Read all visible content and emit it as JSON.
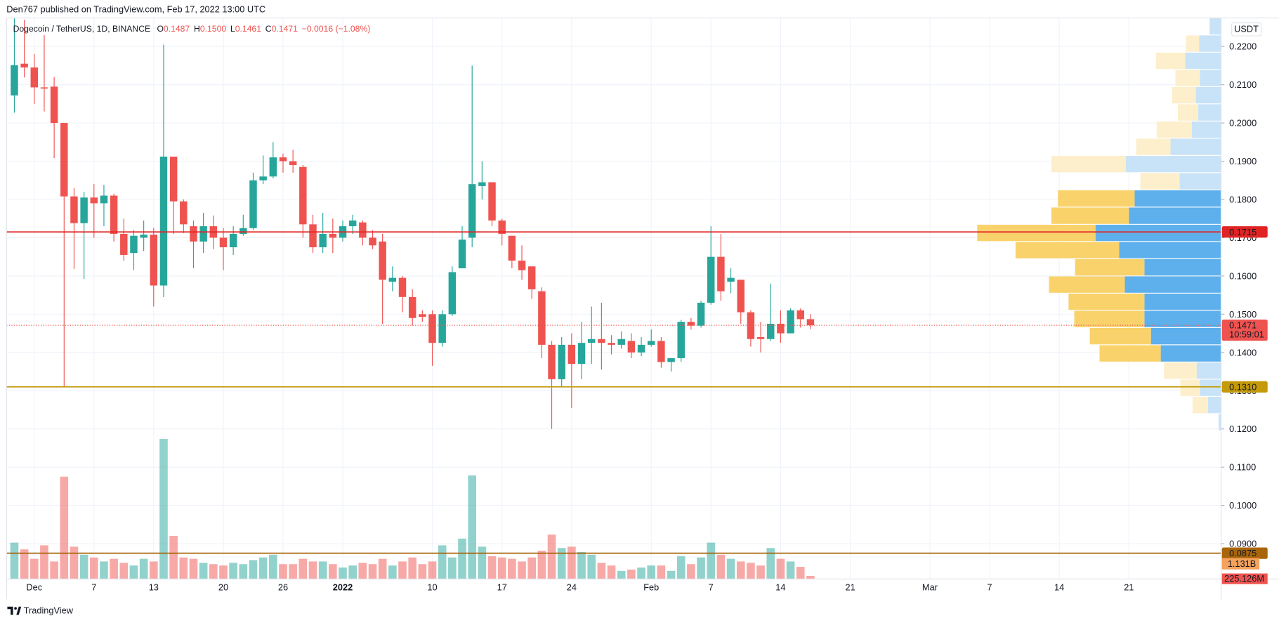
{
  "header": {
    "publisher": "Den767 published on TradingView.com, Feb 17, 2022 13:00 UTC"
  },
  "footer": {
    "brand": "TradingView"
  },
  "chart_data": {
    "type": "candlestick",
    "symbol": "Dogecoin / TetherUS, 1D, BINANCE",
    "ohlc_legend": [
      {
        "label": "O",
        "value": "0.1487"
      },
      {
        "label": "H",
        "value": "0.1500"
      },
      {
        "label": "L",
        "value": "0.1461"
      },
      {
        "label": "C",
        "value": "0.1471"
      }
    ],
    "change": "−0.0016 (−1.08%)",
    "currency": "USDT",
    "up_color": "#26a69a",
    "down_color": "#ef5350",
    "grid": true,
    "categories": [
      null,
      null,
      "Dec",
      null,
      null,
      null,
      null,
      null,
      "7",
      null,
      null,
      null,
      null,
      null,
      "13",
      null,
      null,
      null,
      null,
      null,
      null,
      "20",
      null,
      null,
      null,
      null,
      null,
      "26",
      null,
      null,
      null,
      null,
      null,
      "2022",
      null,
      null,
      null,
      null,
      null,
      null,
      null,
      null,
      "10",
      null,
      null,
      null,
      null,
      null,
      null,
      "17",
      null,
      null,
      null,
      null,
      null,
      null,
      "24",
      null,
      null,
      null,
      null,
      null,
      null,
      null,
      "Feb",
      null,
      null,
      null,
      null,
      null,
      "7",
      null,
      null,
      null,
      null,
      null,
      null,
      "14",
      null,
      null,
      null,
      null,
      null,
      null,
      "21",
      null,
      null,
      null,
      null,
      null,
      null,
      null,
      "Mar",
      null,
      null,
      null,
      null,
      null,
      "7",
      null,
      null,
      null,
      null,
      null,
      null,
      "14",
      null,
      null,
      null,
      null,
      null,
      null,
      "21",
      null,
      null,
      null,
      null,
      null,
      null,
      null,
      null,
      null
    ],
    "open": [
      0.2072,
      0.2155,
      0.2145,
      0.2093,
      0.2095,
      0.2,
      0.1808,
      0.1738,
      0.1805,
      0.179,
      0.181,
      0.171,
      0.166,
      0.17,
      0.1708,
      0.1575,
      0.1912,
      0.1795,
      0.173,
      0.169,
      0.173,
      0.17,
      0.1675,
      0.171,
      0.1725,
      0.185,
      0.186,
      0.191,
      0.19,
      0.1885,
      0.1735,
      0.1675,
      0.171,
      0.17,
      0.173,
      0.174,
      0.17,
      0.169,
      0.1585,
      0.1595,
      0.1545,
      0.15,
      0.15,
      0.1425,
      0.15,
      0.162,
      0.17,
      0.1835,
      0.1845,
      0.1745,
      0.1705,
      0.164,
      0.1625,
      0.156,
      0.142,
      0.133,
      0.142,
      0.137,
      0.1425,
      0.1435,
      0.1425,
      0.142,
      0.143,
      0.14,
      0.142,
      0.143,
      0.1375,
      0.1385,
      0.148,
      0.147,
      0.153,
      0.165,
      0.1585,
      0.159,
      0.1505,
      0.144,
      0.1435,
      0.1475,
      0.145,
      0.151,
      0.1487,
      null,
      null,
      null,
      null,
      null,
      null,
      null,
      null,
      null,
      null,
      null,
      null,
      null,
      null,
      null,
      null,
      null,
      null,
      null,
      null,
      null,
      null,
      null,
      null,
      null,
      null,
      null,
      null,
      null,
      null,
      null,
      null,
      null,
      null,
      null,
      null,
      null,
      null,
      null,
      null,
      null
    ],
    "high": [
      0.2275,
      0.227,
      0.218,
      0.223,
      0.212,
      0.2,
      0.183,
      0.182,
      0.184,
      0.1838,
      0.1815,
      0.175,
      0.172,
      0.1745,
      0.1725,
      0.2205,
      0.1912,
      0.18,
      0.1745,
      0.1765,
      0.1758,
      0.1725,
      0.173,
      0.176,
      0.187,
      0.1915,
      0.195,
      0.192,
      0.193,
      0.189,
      0.176,
      0.1765,
      0.175,
      0.1745,
      0.176,
      0.1745,
      0.172,
      0.171,
      0.1625,
      0.16,
      0.1565,
      0.151,
      0.151,
      0.151,
      0.1625,
      0.173,
      0.215,
      0.19,
      0.1845,
      0.175,
      0.1705,
      0.168,
      0.1625,
      0.157,
      0.143,
      0.144,
      0.145,
      0.148,
      0.152,
      0.153,
      0.1445,
      0.1455,
      0.145,
      0.144,
      0.146,
      0.144,
      0.1385,
      0.1485,
      0.149,
      0.1535,
      0.173,
      0.171,
      0.162,
      0.159,
      0.151,
      0.148,
      0.158,
      0.151,
      0.1515,
      0.1515,
      0.15,
      null,
      null,
      null,
      null,
      null,
      null,
      null,
      null,
      null,
      null,
      null,
      null,
      null,
      null,
      null,
      null,
      null,
      null,
      null,
      null,
      null,
      null,
      null,
      null,
      null,
      null,
      null,
      null,
      null,
      null,
      null,
      null,
      null,
      null,
      null,
      null,
      null,
      null,
      null,
      null,
      null
    ],
    "low": [
      0.2027,
      0.2119,
      0.205,
      0.203,
      0.1908,
      0.131,
      0.1618,
      0.1592,
      0.17,
      0.173,
      0.169,
      0.164,
      0.1615,
      0.1665,
      0.152,
      0.1545,
      0.171,
      0.1712,
      0.162,
      0.166,
      0.167,
      0.1615,
      0.1655,
      0.1705,
      0.172,
      0.184,
      0.1855,
      0.187,
      0.187,
      0.17,
      0.166,
      0.166,
      0.166,
      0.169,
      0.171,
      0.168,
      0.167,
      0.1475,
      0.156,
      0.1505,
      0.147,
      0.148,
      0.1365,
      0.1415,
      0.1495,
      0.162,
      0.1675,
      0.18,
      0.173,
      0.168,
      0.162,
      0.159,
      0.154,
      0.1385,
      0.12,
      0.131,
      0.1255,
      0.133,
      0.137,
      0.1355,
      0.1395,
      0.141,
      0.1385,
      0.139,
      0.1415,
      0.136,
      0.135,
      0.1375,
      0.146,
      0.1465,
      0.1525,
      0.1535,
      0.1555,
      0.1475,
      0.1415,
      0.14,
      0.143,
      0.1425,
      0.145,
      0.1465,
      0.1461,
      null,
      null,
      null,
      null,
      null,
      null,
      null,
      null,
      null,
      null,
      null,
      null,
      null,
      null,
      null,
      null,
      null,
      null,
      null,
      null,
      null,
      null,
      null,
      null,
      null,
      null,
      null,
      null,
      null,
      null,
      null,
      null,
      null,
      null,
      null,
      null,
      null,
      null,
      null,
      null,
      null
    ],
    "close": [
      0.2151,
      0.2145,
      0.2093,
      0.209,
      0.2,
      0.1808,
      0.1738,
      0.1805,
      0.179,
      0.181,
      0.171,
      0.1655,
      0.1705,
      0.1708,
      0.1575,
      0.1912,
      0.1795,
      0.1735,
      0.169,
      0.173,
      0.17,
      0.1675,
      0.171,
      0.1725,
      0.185,
      0.186,
      0.191,
      0.19,
      0.189,
      0.1735,
      0.1675,
      0.171,
      0.17,
      0.173,
      0.1745,
      0.17,
      0.168,
      0.159,
      0.1595,
      0.1545,
      0.149,
      0.1493,
      0.1425,
      0.15,
      0.161,
      0.1695,
      0.184,
      0.1845,
      0.1745,
      0.171,
      0.164,
      0.1615,
      0.1565,
      0.142,
      0.133,
      0.142,
      0.137,
      0.1425,
      0.1435,
      0.1425,
      0.142,
      0.1435,
      0.14,
      0.142,
      0.143,
      0.1375,
      0.1385,
      0.148,
      0.147,
      0.153,
      0.165,
      0.156,
      0.1595,
      0.1505,
      0.1435,
      0.1435,
      0.1475,
      0.145,
      0.151,
      0.1487,
      0.1471,
      null,
      null,
      null,
      null,
      null,
      null,
      null,
      null,
      null,
      null,
      null,
      null,
      null,
      null,
      null,
      null,
      null,
      null,
      null,
      null,
      null,
      null,
      null,
      null,
      null,
      null,
      null,
      null,
      null,
      null,
      null,
      null,
      null,
      null,
      null,
      null,
      null,
      null,
      null,
      null,
      null
    ],
    "volume": [
      2.7,
      2.2,
      1.5,
      2.5,
      1.3,
      7.6,
      2.4,
      1.8,
      1.6,
      1.3,
      1.5,
      1.2,
      1.0,
      1.5,
      1.3,
      10.4,
      3.2,
      1.6,
      1.5,
      1.2,
      1.1,
      1.0,
      1.2,
      1.1,
      1.4,
      1.6,
      1.8,
      1.1,
      1.1,
      1.5,
      1.3,
      1.3,
      1.1,
      0.85,
      1.0,
      1.2,
      1.1,
      1.5,
      1.0,
      1.3,
      1.6,
      1.1,
      1.3,
      2.5,
      1.6,
      3.0,
      7.7,
      2.4,
      1.7,
      1.6,
      1.5,
      1.3,
      1.6,
      2.1,
      3.3,
      2.3,
      2.4,
      2.0,
      1.8,
      1.2,
      1.0,
      0.6,
      0.7,
      0.85,
      1.0,
      1.0,
      0.6,
      1.7,
      1.1,
      1.6,
      2.7,
      1.8,
      1.5,
      1.3,
      1.2,
      1.0,
      2.3,
      1.5,
      1.3,
      0.9,
      0.225126,
      null,
      null,
      null,
      null,
      null,
      null,
      null,
      null,
      null,
      null,
      null,
      null,
      null,
      null,
      null,
      null,
      null,
      null,
      null,
      null,
      null,
      null,
      null,
      null,
      null,
      null,
      null,
      null,
      null,
      null,
      null,
      null,
      null,
      null,
      null,
      null,
      null,
      null,
      null,
      null,
      null
    ],
    "volume_last_label": "225.126M",
    "volume_ma": {
      "value": 1.131,
      "label": "1.131B"
    },
    "volume_ylim": [
      0,
      41.7
    ],
    "ylim": [
      0.08077,
      0.22746
    ],
    "yticks": [
      {
        "value": 0.09,
        "label": "0.0900"
      },
      {
        "value": 0.1,
        "label": "0.1000"
      },
      {
        "value": 0.11,
        "label": "0.1100"
      },
      {
        "value": 0.12,
        "label": "0.1200"
      },
      {
        "value": 0.13,
        "label": "0.1300"
      },
      {
        "value": 0.14,
        "label": "0.1400"
      },
      {
        "value": 0.15,
        "label": "0.1500"
      },
      {
        "value": 0.16,
        "label": "0.1600"
      },
      {
        "value": 0.17,
        "label": "0.1700"
      },
      {
        "value": 0.18,
        "label": "0.1800"
      },
      {
        "value": 0.19,
        "label": "0.1900"
      },
      {
        "value": 0.2,
        "label": "0.2000"
      },
      {
        "value": 0.21,
        "label": "0.2100"
      },
      {
        "value": 0.22,
        "label": "0.2200"
      }
    ],
    "levels": [
      {
        "value": 0.1715,
        "label": "0.1715",
        "color": "#e02424"
      },
      {
        "value": 0.131,
        "label": "0.1310",
        "color": "#c49a0a"
      },
      {
        "value": 0.0875,
        "label": "0.0875",
        "color": "#a8650a"
      }
    ],
    "last": {
      "value": 0.1471,
      "label": "0.1471",
      "countdown": "10:59:01",
      "color": "#ef5350"
    },
    "volume_profile": {
      "up_color": "#5eb0ec",
      "down_color": "#f9d26b",
      "up_color_outside": "#c8e3f8",
      "down_color_outside": "#fdefcc",
      "value_area": [
        0.1375,
        0.1825
      ],
      "rows": [
        {
          "high": 0.2275,
          "low": 0.223,
          "up": 14,
          "down": 0
        },
        {
          "high": 0.223,
          "low": 0.2185,
          "up": 27,
          "down": 16
        },
        {
          "high": 0.2185,
          "low": 0.214,
          "up": 44,
          "down": 36
        },
        {
          "high": 0.214,
          "low": 0.2095,
          "up": 26,
          "down": 30
        },
        {
          "high": 0.2095,
          "low": 0.205,
          "up": 31,
          "down": 29
        },
        {
          "high": 0.205,
          "low": 0.2005,
          "up": 28,
          "down": 25
        },
        {
          "high": 0.2005,
          "low": 0.196,
          "up": 36,
          "down": 43
        },
        {
          "high": 0.196,
          "low": 0.1915,
          "up": 62,
          "down": 42
        },
        {
          "high": 0.1915,
          "low": 0.187,
          "up": 117,
          "down": 91
        },
        {
          "high": 0.187,
          "low": 0.1825,
          "up": 51,
          "down": 48
        },
        {
          "high": 0.1825,
          "low": 0.178,
          "up": 106,
          "down": 94
        },
        {
          "high": 0.178,
          "low": 0.1735,
          "up": 113,
          "down": 95
        },
        {
          "high": 0.1735,
          "low": 0.169,
          "up": 154,
          "down": 145
        },
        {
          "high": 0.169,
          "low": 0.1645,
          "up": 125,
          "down": 127
        },
        {
          "high": 0.1645,
          "low": 0.16,
          "up": 94,
          "down": 85
        },
        {
          "high": 0.16,
          "low": 0.1555,
          "up": 118,
          "down": 93
        },
        {
          "high": 0.1555,
          "low": 0.151,
          "up": 94,
          "down": 93
        },
        {
          "high": 0.151,
          "low": 0.1465,
          "up": 94,
          "down": 86
        },
        {
          "high": 0.1465,
          "low": 0.142,
          "up": 86,
          "down": 75
        },
        {
          "high": 0.142,
          "low": 0.1375,
          "up": 74,
          "down": 75
        },
        {
          "high": 0.1375,
          "low": 0.133,
          "up": 30,
          "down": 40
        },
        {
          "high": 0.133,
          "low": 0.1285,
          "up": 26,
          "down": 24
        },
        {
          "high": 0.1285,
          "low": 0.124,
          "up": 16,
          "down": 19
        },
        {
          "high": 0.124,
          "low": 0.1195,
          "up": 3,
          "down": 0
        }
      ]
    }
  }
}
